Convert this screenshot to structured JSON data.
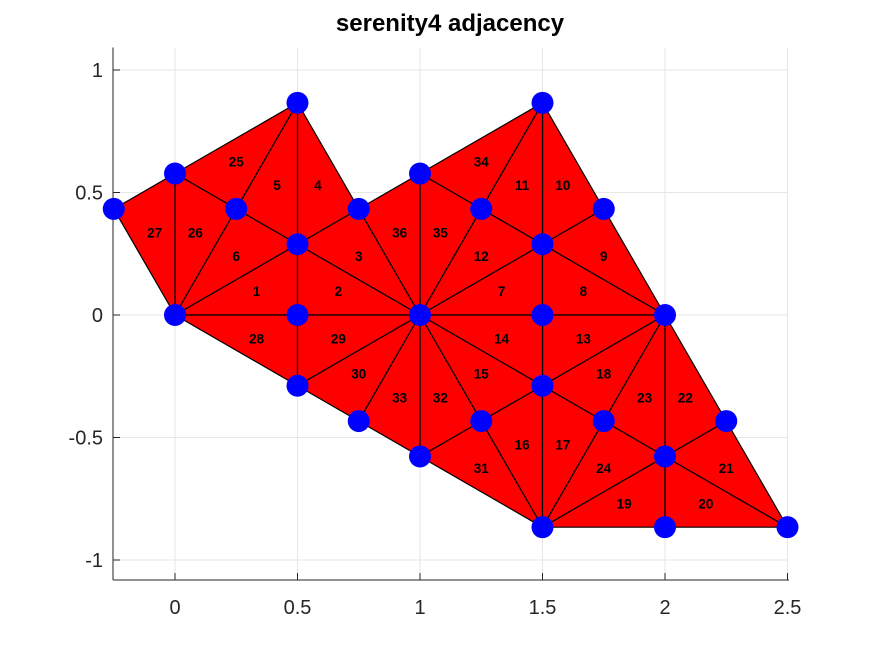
{
  "figure": {
    "title": "serenity4 adjacency"
  },
  "chart_data": {
    "type": "mesh",
    "title": "serenity4 adjacency",
    "note": "Triangular finite-element mesh: red filled triangles with thin black edges, blue circular markers on every mesh node, element numbers 1-36 printed at triangle centroids",
    "xlim": [
      -0.25,
      2.5
    ],
    "ylim": [
      -1.08,
      1.09
    ],
    "grid": true,
    "x_ticks": {
      "values": [
        0,
        0.5,
        1,
        1.5,
        2,
        2.5
      ],
      "labels": [
        "0",
        "0.5",
        "1",
        "1.5",
        "2",
        "2.5"
      ]
    },
    "y_ticks": {
      "values": [
        -1,
        -0.5,
        0,
        0.5,
        1
      ],
      "labels": [
        "-1",
        "-0.5",
        "0",
        "0.5",
        "1"
      ]
    },
    "colors": {
      "triangle_fill": "#ff0000",
      "edge": "#000000",
      "node": "#0000ff",
      "grid": "#e6e6e6",
      "axis": "#262626",
      "tick_label": "#262626",
      "label_text": "#000000",
      "background": "#ffffff"
    },
    "nodes": [
      [
        -0.25,
        0.433
      ],
      [
        0.0,
        0.5774
      ],
      [
        0.25,
        0.433
      ],
      [
        0.5,
        0.866
      ],
      [
        0.5,
        0.2887
      ],
      [
        0.75,
        0.433
      ],
      [
        1.0,
        0.5774
      ],
      [
        1.25,
        0.433
      ],
      [
        1.5,
        0.866
      ],
      [
        1.5,
        0.2887
      ],
      [
        1.75,
        0.433
      ],
      [
        0.0,
        0.0
      ],
      [
        0.5,
        0.0
      ],
      [
        1.0,
        0.0
      ],
      [
        1.5,
        0.0
      ],
      [
        2.0,
        0.0
      ],
      [
        0.5,
        -0.2887
      ],
      [
        0.75,
        -0.433
      ],
      [
        1.0,
        -0.5774
      ],
      [
        1.25,
        -0.433
      ],
      [
        1.5,
        -0.2887
      ],
      [
        1.75,
        -0.433
      ],
      [
        2.0,
        -0.5774
      ],
      [
        2.25,
        -0.433
      ],
      [
        1.5,
        -0.866
      ],
      [
        2.0,
        -0.866
      ],
      [
        2.5,
        -0.866
      ]
    ],
    "triangles": [
      {
        "n": 1,
        "v": [
          11,
          12,
          4
        ]
      },
      {
        "n": 2,
        "v": [
          12,
          13,
          4
        ]
      },
      {
        "n": 3,
        "v": [
          4,
          5,
          13
        ]
      },
      {
        "n": 4,
        "v": [
          3,
          4,
          5
        ]
      },
      {
        "n": 5,
        "v": [
          2,
          3,
          4
        ]
      },
      {
        "n": 6,
        "v": [
          2,
          4,
          11
        ]
      },
      {
        "n": 7,
        "v": [
          13,
          14,
          9
        ]
      },
      {
        "n": 8,
        "v": [
          14,
          15,
          9
        ]
      },
      {
        "n": 9,
        "v": [
          9,
          15,
          10
        ]
      },
      {
        "n": 10,
        "v": [
          8,
          9,
          10
        ]
      },
      {
        "n": 11,
        "v": [
          7,
          8,
          9
        ]
      },
      {
        "n": 12,
        "v": [
          7,
          9,
          13
        ]
      },
      {
        "n": 13,
        "v": [
          14,
          15,
          20
        ]
      },
      {
        "n": 14,
        "v": [
          13,
          14,
          20
        ]
      },
      {
        "n": 15,
        "v": [
          13,
          20,
          19
        ]
      },
      {
        "n": 16,
        "v": [
          19,
          20,
          24
        ]
      },
      {
        "n": 17,
        "v": [
          20,
          21,
          24
        ]
      },
      {
        "n": 18,
        "v": [
          15,
          20,
          21
        ]
      },
      {
        "n": 19,
        "v": [
          22,
          24,
          25
        ]
      },
      {
        "n": 20,
        "v": [
          22,
          25,
          26
        ]
      },
      {
        "n": 21,
        "v": [
          22,
          23,
          26
        ]
      },
      {
        "n": 22,
        "v": [
          15,
          22,
          23
        ]
      },
      {
        "n": 23,
        "v": [
          15,
          21,
          22
        ]
      },
      {
        "n": 24,
        "v": [
          21,
          22,
          24
        ]
      },
      {
        "n": 25,
        "v": [
          1,
          2,
          3
        ]
      },
      {
        "n": 26,
        "v": [
          1,
          2,
          11
        ]
      },
      {
        "n": 27,
        "v": [
          0,
          1,
          11
        ]
      },
      {
        "n": 28,
        "v": [
          11,
          12,
          16
        ]
      },
      {
        "n": 29,
        "v": [
          12,
          13,
          16
        ]
      },
      {
        "n": 30,
        "v": [
          13,
          16,
          17
        ]
      },
      {
        "n": 31,
        "v": [
          18,
          19,
          24
        ]
      },
      {
        "n": 32,
        "v": [
          13,
          18,
          19
        ]
      },
      {
        "n": 33,
        "v": [
          13,
          17,
          18
        ]
      },
      {
        "n": 34,
        "v": [
          6,
          7,
          8
        ]
      },
      {
        "n": 35,
        "v": [
          6,
          7,
          13
        ]
      },
      {
        "n": 36,
        "v": [
          5,
          6,
          13
        ]
      }
    ]
  }
}
